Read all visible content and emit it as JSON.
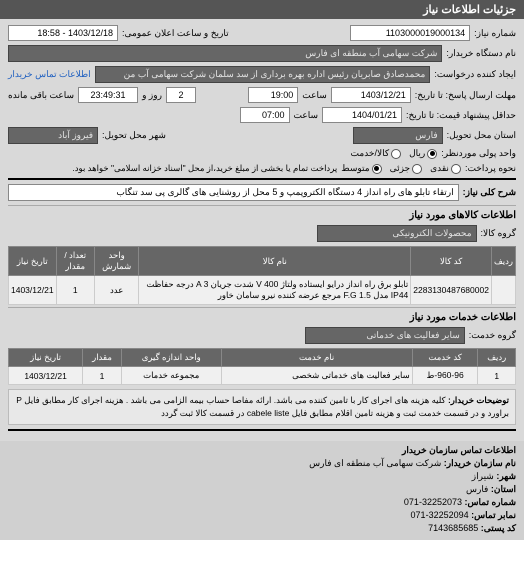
{
  "header": {
    "title": "جزئیات اطلاعات نیاز"
  },
  "form": {
    "need_number_label": "شماره نیاز:",
    "need_number": "1103000019000134",
    "announce_date_label": "تاریخ و ساعت اعلان عمومی:",
    "announce_date": "1403/12/18 - 18:58",
    "buyer_org_label": "نام دستگاه خریدار:",
    "buyer_org": "شرکت سهامی آب منطقه ای فارس",
    "requester_label": "ایجاد کننده درخواست:",
    "requester": "محمدصادق صابریان رئیس اداره بهره برداری از سد سلمان شرکت سهامی آب من",
    "contact_link": "اطلاعات تماس خریدار",
    "deadline_send_label": "مهلت ارسال پاسخ: تا تاریخ:",
    "deadline_send_date": "1403/12/21",
    "deadline_send_time_label": "ساعت",
    "deadline_send_time": "19:00",
    "remain_day_num": "2",
    "remain_day_label": "روز و",
    "remain_time": "23:49:31",
    "remain_suffix": "ساعت باقی مانده",
    "final_deadline_label": "حداقل پیشنهاد قیمت: تا تاریخ:",
    "final_date": "1404/01/21",
    "final_time_label": "ساعت",
    "final_time": "07:00",
    "province_label": "استان محل تحویل:",
    "province": "فارس",
    "city_label": "شهر محل تحویل:",
    "city": "فیروز آباد",
    "currency_label": "واحد پولی موردنظر:",
    "currency_options": [
      "ریال",
      "کالا/خدمت"
    ],
    "payment_label": "نحوه پرداخت:",
    "payment_options": [
      "نقدی",
      "جزئی",
      "متوسط"
    ],
    "payment_note": "پرداخت تمام یا بخشی از مبلغ خرید،از محل \"اسناد خزانه اسلامی\" خواهد بود.",
    "need_title_label": "شرح کلی نیاز:",
    "need_title": "ارتقاء تابلو های راه انداز 4 دستگاه الکتروپمپ و 5 محل از روشنایی های گالری پی سد تنگاب"
  },
  "goods": {
    "header": "اطلاعات کالاهای مورد نیاز",
    "group_label": "گروه کالا:",
    "group_value": "محصولات الکترونیکی",
    "columns": [
      "ردیف",
      "کد کالا",
      "نام کالا",
      "واحد شمارش",
      "تعداد / مقدار",
      "تاریخ نیاز"
    ],
    "rows": [
      [
        "",
        "2283130487680002",
        "تابلو برق راه انداز درایو ایستاده ولتاژ V 400 شدت جریان A 3 درجه حفاظت IP44 مدل 1.5 F.G مرجع عرضه کننده نیرو سامان خاور",
        "عدد",
        "1",
        "1403/12/21"
      ]
    ]
  },
  "services": {
    "header": "اطلاعات خدمات مورد نیاز",
    "group_label": "گروه خدمت:",
    "group_value": "سایر فعالیت های خدماتی",
    "columns": [
      "ردیف",
      "کد خدمت",
      "نام خدمت",
      "واحد اندازه گیری",
      "مقدار",
      "تاریخ نیاز"
    ],
    "rows": [
      [
        "1",
        "960-96-ط",
        "سایر فعالیت های خدماتی شخصی",
        "مجموعه خدمات",
        "1",
        "1403/12/21"
      ]
    ]
  },
  "note": {
    "label": "توضیحات خریدار:",
    "text": "کلیه هزینه های اجرای کار با تامین کننده می باشد. ارائه مفاصا حساب بیمه الزامی می باشد . هزینه اجرای کار مطابق فایل P براورد و در قسمت خدمت ثبت و هزینه تامین اقلام مطابق فایل cabele liste در قسمت کالا ثبت گردد"
  },
  "footer": {
    "header": "اطلاعات تماس سازمان خریدار",
    "org_label": "نام سازمان خریدار:",
    "org": "شرکت سهامی آب منطقه ای فارس",
    "city_label": "شهر:",
    "city": "شیراز",
    "province_label": "استان:",
    "province": "فارس",
    "phone_label": "شماره تماس:",
    "phone": "32252073-071",
    "fax_label": "نمابر تماس:",
    "fax": "32252094-071",
    "postal_label": "کد پستی:",
    "postal": "7143685685"
  }
}
